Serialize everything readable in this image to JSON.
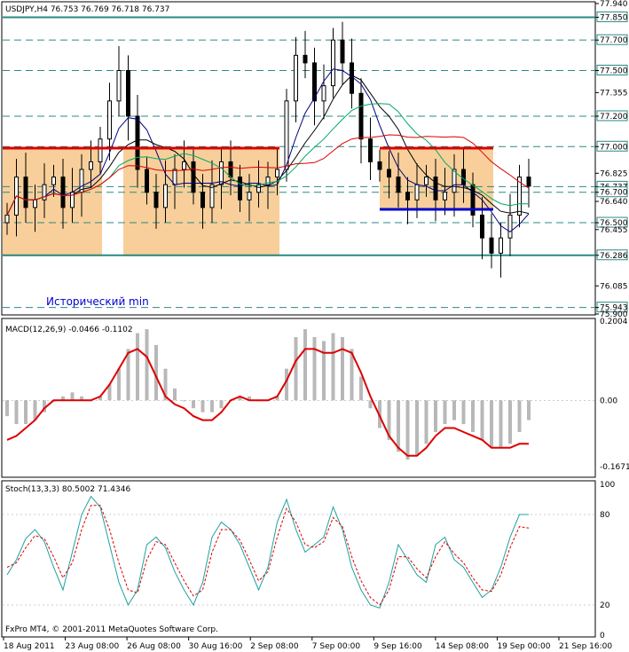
{
  "chart_data": [
    {
      "type": "line",
      "title": "USDJPY,H4 76.753 76.769 76.718 76.737",
      "y_range": [
        75.9,
        77.94
      ],
      "y_ticks": [
        "77.940",
        "77.850",
        "77.700",
        "77.500",
        "77.355",
        "77.200",
        "77.000",
        "76.825",
        "76.737",
        "76.700",
        "76.640",
        "76.500",
        "76.455",
        "76.286",
        "76.085",
        "75.943",
        "75.900"
      ],
      "highlighted_levels": [
        {
          "value": 77.85,
          "label": "77.850"
        },
        {
          "value": 77.7,
          "label": "77.700"
        },
        {
          "value": 77.5,
          "label": "77.500"
        },
        {
          "value": 77.2,
          "label": "77.200"
        },
        {
          "value": 77.0,
          "label": "77.000"
        },
        {
          "value": 76.737,
          "label": "76.737"
        },
        {
          "value": 76.7,
          "label": "76.700"
        },
        {
          "value": 76.5,
          "label": "76.500"
        },
        {
          "value": 76.286,
          "label": "76.286"
        },
        {
          "value": 75.943,
          "label": "75.943"
        }
      ],
      "annotation": "Исторический min",
      "x_labels": [
        "18 Aug 2011",
        "23 Aug 08:00",
        "26 Aug 08:00",
        "30 Aug 16:00",
        "2 Sep 08:00",
        "7 Sep 00:00",
        "9 Sep 16:00",
        "14 Sep 08:00",
        "19 Sep 00:00",
        "21 Sep 16:00"
      ],
      "close_series": [
        76.55,
        76.8,
        76.6,
        76.65,
        76.75,
        76.8,
        76.6,
        76.7,
        76.85,
        76.9,
        77.05,
        77.3,
        77.5,
        77.2,
        76.85,
        76.7,
        76.6,
        76.75,
        76.85,
        76.9,
        76.7,
        76.6,
        76.75,
        76.9,
        76.8,
        76.65,
        76.7,
        76.75,
        76.8,
        76.85,
        77.3,
        77.6,
        77.55,
        77.3,
        77.4,
        77.7,
        77.55,
        77.35,
        77.05,
        76.9,
        76.85,
        76.8,
        76.7,
        76.65,
        76.75,
        76.8,
        76.65,
        76.7,
        76.85,
        76.75,
        76.55,
        76.4,
        76.3,
        76.4,
        76.55,
        76.8,
        76.74
      ]
    },
    {
      "type": "bar",
      "title": "MACD(12,26,9) -0.0466 -0.1102",
      "y_range": [
        -0.19,
        0.2004
      ],
      "y_ticks": [
        "0.2004",
        "0.00",
        "-0.1671"
      ],
      "histogram": [
        -0.04,
        -0.06,
        -0.06,
        -0.05,
        -0.03,
        0.0,
        0.01,
        0.02,
        0.01,
        0.0,
        0.01,
        0.04,
        0.08,
        0.13,
        0.17,
        0.18,
        0.14,
        0.08,
        0.03,
        0.0,
        -0.02,
        -0.03,
        -0.03,
        -0.02,
        0.0,
        0.01,
        0.01,
        0.0,
        0.0,
        0.01,
        0.08,
        0.16,
        0.18,
        0.16,
        0.15,
        0.17,
        0.16,
        0.13,
        0.06,
        -0.02,
        -0.07,
        -0.1,
        -0.13,
        -0.15,
        -0.14,
        -0.11,
        -0.08,
        -0.06,
        -0.05,
        -0.06,
        -0.08,
        -0.1,
        -0.12,
        -0.12,
        -0.11,
        -0.08,
        -0.05
      ],
      "signal": [
        -0.1,
        -0.09,
        -0.07,
        -0.05,
        -0.02,
        0.0,
        0.0,
        0.0,
        0.0,
        0.0,
        0.01,
        0.04,
        0.08,
        0.12,
        0.13,
        0.11,
        0.06,
        0.01,
        -0.01,
        -0.02,
        -0.04,
        -0.05,
        -0.05,
        -0.03,
        0.0,
        0.01,
        0.0,
        0.0,
        0.0,
        0.01,
        0.05,
        0.1,
        0.13,
        0.13,
        0.12,
        0.12,
        0.13,
        0.12,
        0.07,
        0.01,
        -0.04,
        -0.09,
        -0.12,
        -0.14,
        -0.14,
        -0.12,
        -0.09,
        -0.07,
        -0.07,
        -0.08,
        -0.09,
        -0.1,
        -0.12,
        -0.12,
        -0.12,
        -0.11,
        -0.11
      ]
    },
    {
      "type": "line",
      "title": "Stoch(13,3,3) 80.5002 71.4346",
      "y_range": [
        0,
        100
      ],
      "y_ticks": [
        "100",
        "80",
        "20",
        "0"
      ],
      "main": [
        40,
        50,
        64,
        70,
        62,
        45,
        30,
        55,
        80,
        92,
        85,
        60,
        35,
        20,
        30,
        60,
        65,
        58,
        42,
        30,
        20,
        35,
        65,
        75,
        70,
        60,
        45,
        30,
        45,
        75,
        90,
        70,
        55,
        60,
        65,
        85,
        70,
        45,
        30,
        20,
        18,
        35,
        60,
        50,
        40,
        35,
        60,
        65,
        50,
        45,
        35,
        25,
        30,
        45,
        65,
        80,
        80
      ],
      "signal": [
        45,
        48,
        58,
        66,
        64,
        52,
        38,
        48,
        70,
        86,
        86,
        70,
        48,
        30,
        28,
        50,
        62,
        60,
        48,
        36,
        26,
        30,
        55,
        70,
        70,
        63,
        50,
        36,
        42,
        65,
        84,
        75,
        60,
        58,
        62,
        78,
        72,
        52,
        36,
        25,
        20,
        30,
        52,
        52,
        44,
        38,
        52,
        62,
        54,
        48,
        38,
        30,
        29,
        40,
        58,
        72,
        71
      ]
    }
  ],
  "footer": {
    "copyright": "FxPro MT4, © 2001-2011 MetaQuotes Software Corp."
  },
  "colors": {
    "support_box": "#f8cf9a",
    "red_line": "#dd0000",
    "teal_line": "#2a8a84",
    "blue_line": "#0000cc"
  }
}
